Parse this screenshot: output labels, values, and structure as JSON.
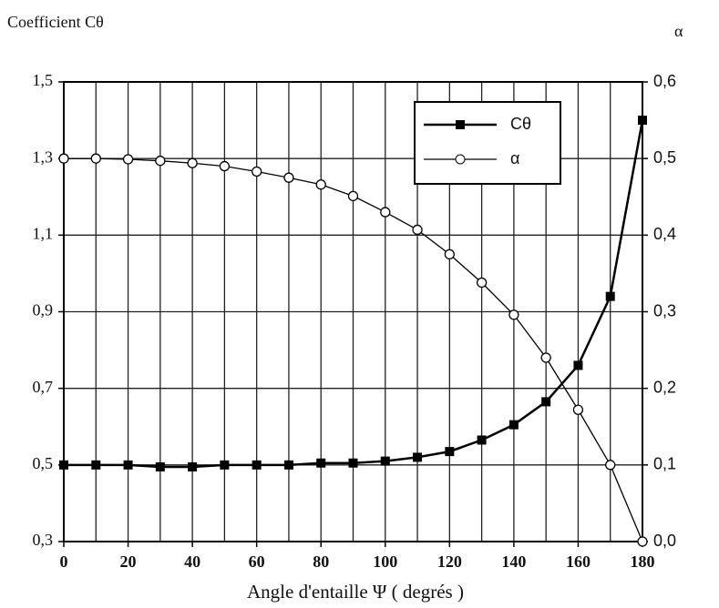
{
  "chart_data": {
    "type": "line",
    "ylabel": "Coefficient  Cθ",
    "y2label": "α",
    "xlabel": "Angle d'entaille Ψ ( degrés )",
    "x": [
      0,
      10,
      20,
      30,
      40,
      50,
      60,
      70,
      80,
      90,
      100,
      110,
      120,
      130,
      140,
      150,
      160,
      170,
      180
    ],
    "series": [
      {
        "name": "Cθ",
        "color": "#000000",
        "marker": "square",
        "values": [
          0.5,
          0.5,
          0.5,
          0.495,
          0.495,
          0.5,
          0.5,
          0.5,
          0.505,
          0.505,
          0.51,
          0.52,
          0.535,
          0.565,
          0.605,
          0.665,
          0.76,
          0.94,
          1.4
        ]
      },
      {
        "name": "α",
        "color": "#000000",
        "marker": "circle",
        "axis": "y2",
        "values": [
          0.5,
          0.5,
          0.499,
          0.497,
          0.494,
          0.49,
          0.483,
          0.475,
          0.466,
          0.451,
          0.43,
          0.407,
          0.375,
          0.338,
          0.296,
          0.24,
          0.172,
          0.1,
          0.0
        ]
      }
    ],
    "xlim": [
      0,
      180
    ],
    "xticks": [
      0,
      20,
      40,
      60,
      80,
      100,
      120,
      140,
      160,
      180
    ],
    "xgrid_step": 10,
    "ylim": [
      0.3,
      1.5
    ],
    "yticks": [
      {
        "value": 0.3,
        "label": "0,3"
      },
      {
        "value": 0.5,
        "label": "0,5"
      },
      {
        "value": 0.7,
        "label": "0,7"
      },
      {
        "value": 0.9,
        "label": "0,9"
      },
      {
        "value": 1.1,
        "label": "1,1"
      },
      {
        "value": 1.3,
        "label": "1,3"
      },
      {
        "value": 1.5,
        "label": "1,5"
      }
    ],
    "y2lim": [
      0.0,
      0.6
    ],
    "y2ticks": [
      {
        "value": 0.0,
        "label": "0,0"
      },
      {
        "value": 0.1,
        "label": "0,1"
      },
      {
        "value": 0.2,
        "label": "0,2"
      },
      {
        "value": 0.3,
        "label": "0,3"
      },
      {
        "value": 0.4,
        "label": "0,4"
      },
      {
        "value": 0.5,
        "label": "0,5"
      },
      {
        "value": 0.6,
        "label": "0,6"
      }
    ],
    "grid": true,
    "legend": "upper right"
  }
}
